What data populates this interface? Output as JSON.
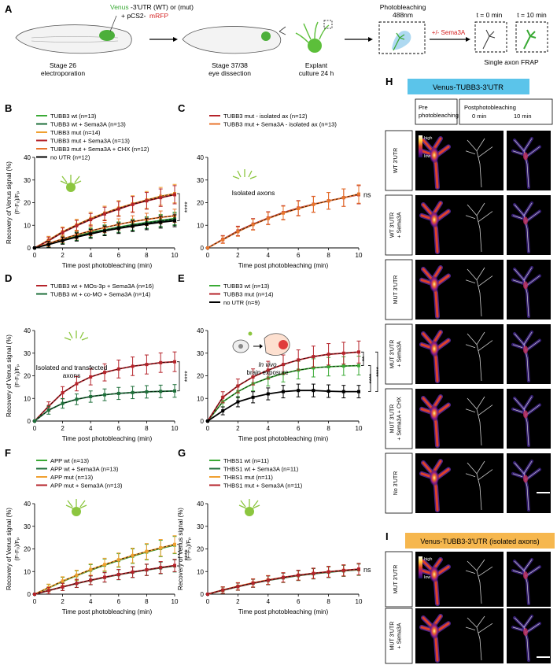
{
  "panel_a": {
    "letter": "A",
    "construct_venus": "Venus",
    "construct_rest": "-3'UTR (WT) or (mut)",
    "construct_plus": "+ pCS2-",
    "construct_mrfp": "mRFP",
    "stage1": "Stage 26",
    "stage1b": "electroporation",
    "stage2": "Stage 37/38",
    "stage2b": "eye dissection",
    "explant1": "Explant",
    "explant2": "culture 24 h",
    "photo1": "Photobleaching",
    "photo2": "488nm",
    "sema": "+/- Sema3A",
    "t0": "t = 0 min",
    "t10": "t = 10 min",
    "frap": "Single axon FRAP"
  },
  "ylabel_main": "Recovery of Venus signal (%)",
  "ylabel_sub": "(F-F₀)/Fₚ",
  "ylabel_fg": "(F-F₀)/Fₚ",
  "xlabel": "Time post photobleaching (min)",
  "colors": {
    "light_green": "#3aaa35",
    "dark_green": "#1e6f3a",
    "orange": "#f0a030",
    "red": "#b5232a",
    "bright_orange": "#e8742c",
    "black": "#000000"
  },
  "chart_data": [
    {
      "panel": "B",
      "type": "line",
      "annotation": "",
      "x": [
        0,
        1,
        2,
        3,
        4,
        5,
        6,
        7,
        8,
        9,
        10
      ],
      "ylim": [
        0,
        40
      ],
      "xlim": [
        0,
        10
      ],
      "sig_labels": [
        "****"
      ],
      "series": [
        {
          "name": "TUBB3 wt (n=13)",
          "color": "light_green",
          "values": [
            0,
            1.8,
            3.6,
            5.2,
            6.8,
            8.0,
            9.2,
            10.3,
            11.2,
            12.1,
            13.0
          ]
        },
        {
          "name": "TUBB3 wt + Sema3A (n=13)",
          "color": "dark_green",
          "values": [
            0,
            1.6,
            3.4,
            5.0,
            6.5,
            7.8,
            9.0,
            10.0,
            11.0,
            11.8,
            12.6
          ]
        },
        {
          "name": "TUBB3 mut (n=14)",
          "color": "orange",
          "values": [
            0,
            3.5,
            7.2,
            10.2,
            13.0,
            15.4,
            17.6,
            19.5,
            21.2,
            22.8,
            24.0
          ]
        },
        {
          "name": "TUBB3 mut + Sema3A (n=13)",
          "color": "red",
          "values": [
            0,
            3.2,
            6.8,
            9.8,
            12.5,
            15.0,
            17.2,
            19.2,
            20.8,
            22.2,
            23.5
          ]
        },
        {
          "name": "TUBB3 mut + Sema3A + CHX (n=12)",
          "color": "bright_orange",
          "values": [
            0,
            2.0,
            4.0,
            5.8,
            7.5,
            9.0,
            10.4,
            11.6,
            12.6,
            13.5,
            14.2
          ]
        },
        {
          "name": "no UTR (n=12)",
          "color": "black",
          "values": [
            0,
            1.5,
            3.2,
            4.8,
            6.2,
            7.5,
            8.6,
            9.6,
            10.5,
            11.3,
            12.0
          ]
        }
      ]
    },
    {
      "panel": "C",
      "type": "line",
      "annotation": "Isolated axons",
      "x": [
        0,
        1,
        2,
        3,
        4,
        5,
        6,
        7,
        8,
        9,
        10
      ],
      "ylim": [
        0,
        40
      ],
      "xlim": [
        0,
        10
      ],
      "sig_labels": [
        "ns"
      ],
      "series": [
        {
          "name": "TUBB3 mut - isolated ax (n=12)",
          "color": "red",
          "values": [
            0,
            3.8,
            7.5,
            10.5,
            13.2,
            15.6,
            17.6,
            19.3,
            20.8,
            22.2,
            23.5
          ]
        },
        {
          "name": "TUBB3 mut + Sema3A - isolated ax (n=13)",
          "color": "bright_orange",
          "values": [
            0,
            3.6,
            7.2,
            10.3,
            13.0,
            15.4,
            17.4,
            19.2,
            20.8,
            22.2,
            23.8
          ]
        }
      ]
    },
    {
      "panel": "D",
      "type": "line",
      "annotation": "Isolated and transfected axons",
      "x": [
        0,
        1,
        2,
        3,
        4,
        5,
        6,
        7,
        8,
        9,
        10
      ],
      "ylim": [
        0,
        40
      ],
      "xlim": [
        0,
        10
      ],
      "sig_labels": [
        "****"
      ],
      "series": [
        {
          "name": "TUBB3 wt + MOs-3p + Sema3A (n=16)",
          "color": "red",
          "values": [
            0,
            6.5,
            12.5,
            16.5,
            19.5,
            21.5,
            23.0,
            24.2,
            25.0,
            25.8,
            26.2
          ]
        },
        {
          "name": "TUBB3 wt + co-MO + Sema3A (n=14)",
          "color": "dark_green",
          "values": [
            0,
            4.8,
            7.8,
            9.6,
            10.8,
            11.6,
            12.2,
            12.6,
            12.9,
            13.1,
            13.3
          ]
        }
      ]
    },
    {
      "panel": "E",
      "type": "line",
      "annotation": "In vivo brain exposure",
      "x": [
        0,
        1,
        2,
        3,
        4,
        5,
        6,
        7,
        8,
        9,
        10
      ],
      "ylim": [
        0,
        40
      ],
      "xlim": [
        0,
        10
      ],
      "sig_labels": [
        "**",
        "****",
        "****"
      ],
      "series": [
        {
          "name": "TUBB3 wt (n=13)",
          "color": "light_green",
          "values": [
            0,
            8.5,
            13.0,
            16.5,
            19.0,
            21.0,
            22.5,
            23.5,
            24.0,
            24.3,
            24.5
          ]
        },
        {
          "name": "TUBB3 mut (n=14)",
          "color": "red",
          "values": [
            0,
            10.5,
            15.5,
            19.5,
            22.5,
            25.0,
            27.0,
            28.5,
            29.5,
            30.0,
            30.5
          ]
        },
        {
          "name": "no UTR (n=9)",
          "color": "black",
          "values": [
            0,
            4.5,
            8.5,
            10.5,
            12.0,
            13.0,
            13.5,
            13.5,
            13.2,
            13.0,
            13.0
          ]
        }
      ]
    },
    {
      "panel": "F",
      "type": "line",
      "annotation": "",
      "x": [
        0,
        1,
        2,
        3,
        4,
        5,
        6,
        7,
        8,
        9,
        10
      ],
      "ylim": [
        0,
        40
      ],
      "xlim": [
        0,
        10
      ],
      "sig_labels": [
        "****"
      ],
      "series": [
        {
          "name": "APP wt (n=13)",
          "color": "light_green",
          "values": [
            0,
            2.8,
            5.6,
            8.2,
            10.6,
            12.8,
            14.9,
            16.8,
            18.6,
            20.2,
            21.7
          ]
        },
        {
          "name": "APP wt + Sema3A (n=13)",
          "color": "dark_green",
          "values": [
            0,
            1.6,
            3.2,
            4.7,
            6.1,
            7.4,
            8.6,
            9.7,
            10.7,
            11.6,
            12.5
          ]
        },
        {
          "name": "APP mut (n=13)",
          "color": "orange",
          "values": [
            0,
            2.9,
            5.8,
            8.4,
            10.9,
            13.1,
            15.2,
            17.1,
            18.9,
            20.5,
            22.0
          ]
        },
        {
          "name": "APP mut + Sema3A (n=13)",
          "color": "red",
          "values": [
            0,
            1.6,
            3.2,
            4.8,
            6.2,
            7.5,
            8.7,
            9.8,
            10.8,
            11.8,
            12.7
          ]
        }
      ]
    },
    {
      "panel": "G",
      "type": "line",
      "annotation": "",
      "x": [
        0,
        1,
        2,
        3,
        4,
        5,
        6,
        7,
        8,
        9,
        10
      ],
      "ylim": [
        0,
        40
      ],
      "xlim": [
        0,
        10
      ],
      "sig_labels": [
        "ns"
      ],
      "series": [
        {
          "name": "THBS1 wt (n=11)",
          "color": "light_green",
          "values": [
            0,
            1.8,
            3.4,
            4.9,
            6.2,
            7.3,
            8.3,
            9.1,
            9.8,
            10.4,
            10.9
          ]
        },
        {
          "name": "THBS1 wt + Sema3A (n=11)",
          "color": "dark_green",
          "values": [
            0,
            1.7,
            3.3,
            4.8,
            6.1,
            7.2,
            8.2,
            9.0,
            9.7,
            10.3,
            10.8
          ]
        },
        {
          "name": "THBS1 mut (n=11)",
          "color": "orange",
          "values": [
            0,
            1.8,
            3.5,
            5.0,
            6.3,
            7.4,
            8.4,
            9.2,
            9.9,
            10.5,
            11.0
          ]
        },
        {
          "name": "THBS1 mut + Sema3A (n=11)",
          "color": "red",
          "values": [
            0,
            1.8,
            3.4,
            4.9,
            6.2,
            7.4,
            8.4,
            9.2,
            9.9,
            10.5,
            11.1
          ]
        }
      ]
    }
  ],
  "panel_h": {
    "letter": "H",
    "title": "Venus-TUBB3-3'UTR",
    "col_pre": "Pre photobleaching",
    "col_post": "Postphotobleaching",
    "col_0": "0 min",
    "col_10": "10 min",
    "cb_high": "high",
    "cb_low": "low",
    "rows": [
      "WT 3'UTR",
      "WT 3'UTR + Sema3A",
      "MUT 3'UTR",
      "MUT 3'UTR + Sema3A",
      "MUT 3'UTR + Sema3A + CHX",
      "No 3'UTR"
    ]
  },
  "panel_i": {
    "letter": "I",
    "title": "Venus-TUBB3-3'UTR (isolated axons)",
    "cb_high": "high",
    "cb_low": "low",
    "rows": [
      "MUT 3'UTR",
      "MUT 3'UTR + Sema3A"
    ]
  }
}
